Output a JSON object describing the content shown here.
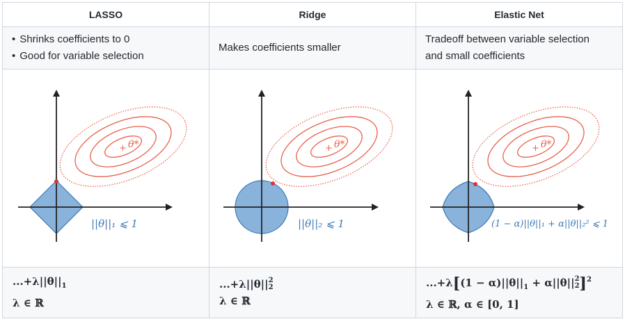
{
  "columns": [
    {
      "header": "LASSO",
      "bullets": [
        "Shrinks coefficients to 0",
        "Good for variable selection"
      ],
      "description": "",
      "constraint_label": "||θ||₁ ⩽ 1",
      "optimum_label": "θ*",
      "penalty": {
        "prefix": "...+λ||θ||",
        "sub": "1",
        "sup": "",
        "rest": ""
      },
      "domain": "λ ∈ ℝ"
    },
    {
      "header": "Ridge",
      "bullets": [],
      "description": "Makes coefficients smaller",
      "constraint_label": "||θ||₂ ⩽ 1",
      "optimum_label": "θ*",
      "penalty": {
        "prefix": "...+λ||θ||",
        "sub": "2",
        "sup": "2",
        "rest": ""
      },
      "domain": "λ ∈ ℝ"
    },
    {
      "header": "Elastic Net",
      "bullets": [],
      "description": "Tradeoff between variable selection and small coefficients",
      "constraint_label": "(1 − α)||θ||₁ + α||θ||₂² ⩽ 1",
      "optimum_label": "θ*",
      "penalty": {
        "prefix": "...+λ",
        "open": "[",
        "part1": "(1 − α)||θ||",
        "sub1": "1",
        "part2": " + α||θ||",
        "sub2": "2",
        "sup2": "2",
        "close": "]",
        "sup_close": "2"
      },
      "domain": "λ ∈ ℝ, α ∈ [0, 1]"
    }
  ],
  "colors": {
    "contour": "#e8604c",
    "region_fill": "#8ab3dc",
    "region_stroke": "#3d78b4",
    "touch_point": "#e0303a",
    "label_blue": "#3d78b4",
    "axis": "#222222"
  }
}
